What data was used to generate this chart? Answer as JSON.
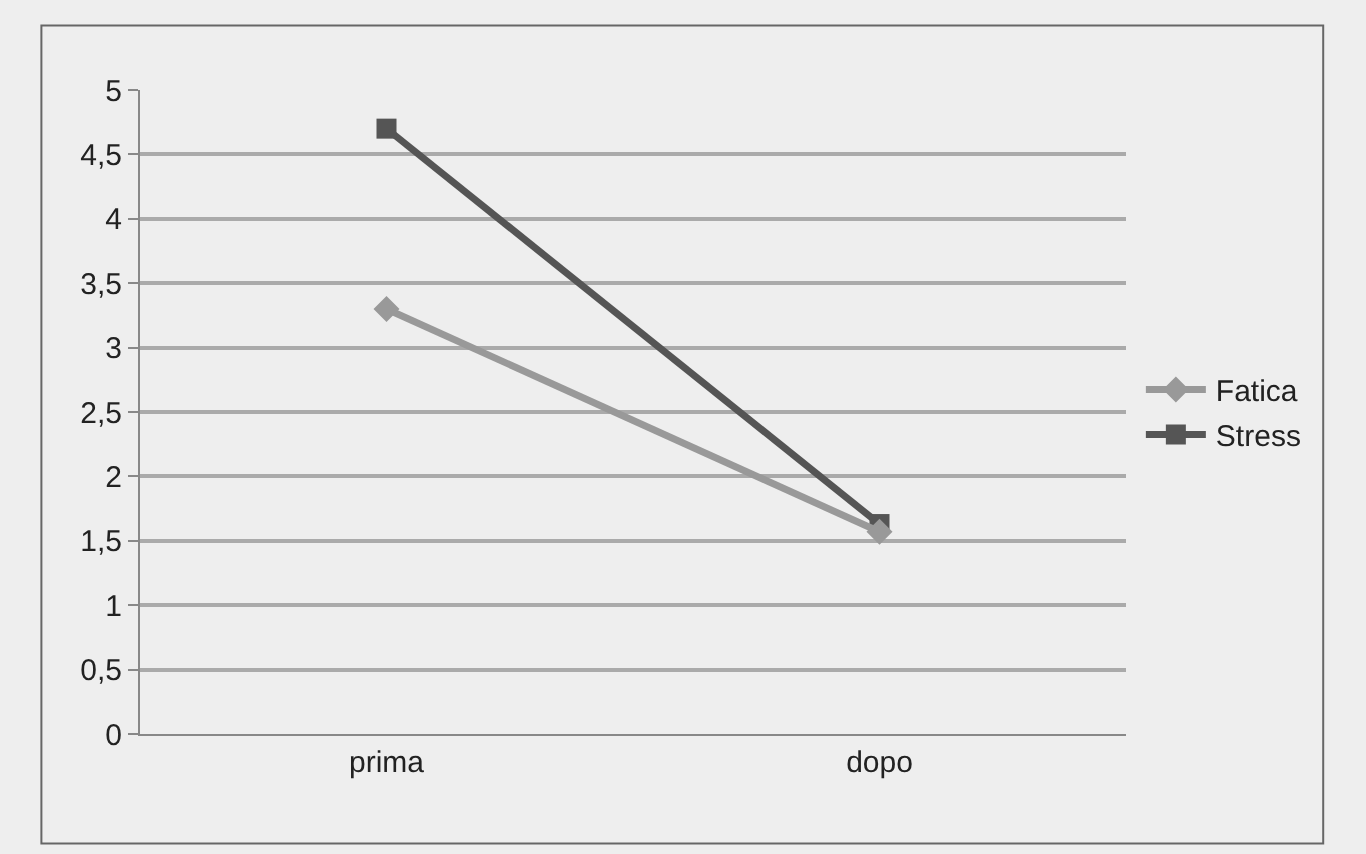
{
  "chart_data": {
    "type": "line",
    "categories": [
      "prima",
      "dopo"
    ],
    "series": [
      {
        "name": "Fatica",
        "color": "#999999",
        "values": [
          3.3,
          1.57
        ],
        "marker": "diamond"
      },
      {
        "name": "Stress",
        "color": "#555555",
        "values": [
          4.7,
          1.63
        ],
        "marker": "square"
      }
    ],
    "ylim": [
      0,
      5
    ],
    "yticks": [
      0,
      {
        "value": 0.5,
        "label": "0,5"
      },
      1,
      {
        "value": 1.5,
        "label": "1,5"
      },
      2,
      {
        "value": 2.5,
        "label": "2,5"
      },
      3,
      {
        "value": 3.5,
        "label": "3,5"
      },
      4,
      {
        "value": 4.5,
        "label": "4,5"
      },
      5
    ],
    "grid": "y",
    "legend": "right",
    "line_style": "solid"
  }
}
